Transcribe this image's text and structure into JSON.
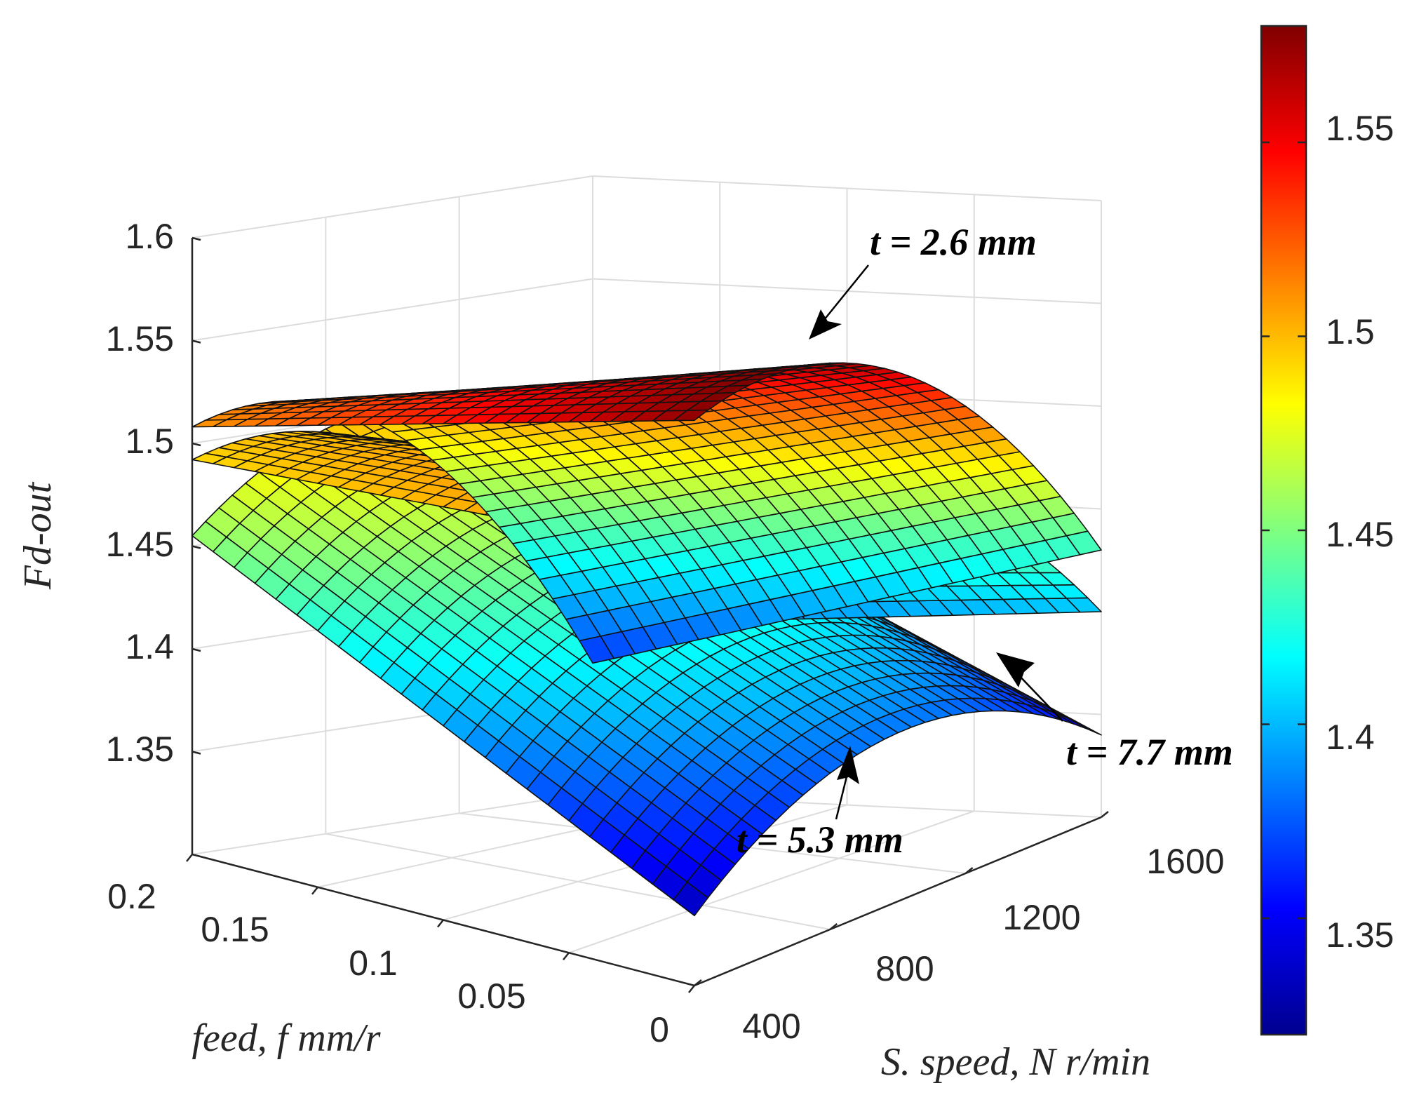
{
  "chart_data": {
    "type": "surface",
    "colormap": "jet",
    "zlabel": "Fd-out",
    "xlabel": "feed, f mm/r",
    "ylabel": "S. speed, N r/min",
    "xlim": [
      0,
      0.2
    ],
    "ylim": [
      400,
      1600
    ],
    "zlim": [
      1.3,
      1.6
    ],
    "clim": [
      1.32,
      1.58
    ],
    "xticks": [
      "0",
      "0.05",
      "0.1",
      "0.15",
      "0.2"
    ],
    "yticks": [
      "400",
      "800",
      "1200",
      "1600"
    ],
    "zticks": [
      "1.35",
      "1.4",
      "1.45",
      "1.5",
      "1.55",
      "1.6"
    ],
    "colorbar_ticks": [
      "1.35",
      "1.4",
      "1.45",
      "1.5",
      "1.55"
    ],
    "series": [
      {
        "name": "t = 2.6 mm",
        "corners": {
          "f0_N400": 1.575,
          "f0.2_N400": 1.508,
          "f0_N1600": 1.43,
          "f0.2_N1600": 1.363
        }
      },
      {
        "name": "t = 5.3 mm",
        "corners": {
          "f0_N400": 1.334,
          "f0.2_N400": 1.455,
          "f0_N1600": 1.34,
          "f0.2_N1600": 1.461
        }
      },
      {
        "name": "t = 7.7 mm",
        "corners": {
          "f0_N400": 1.51,
          "f0.2_N400": 1.492,
          "f0_N1600": 1.4,
          "f0.2_N1600": 1.382
        }
      }
    ],
    "annotations": {
      "t26": "t = 2.6 mm",
      "t53": "t = 5.3 mm",
      "t77": "t = 7.7 mm"
    }
  }
}
